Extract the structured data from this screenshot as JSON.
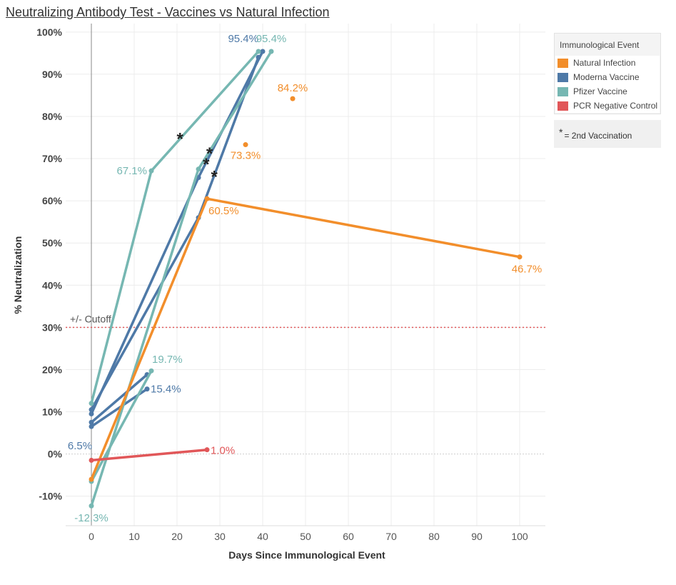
{
  "chart_data": {
    "type": "line",
    "title": "Neutralizing Antibody Test - Vaccines vs Natural Infection",
    "xlabel": "Days Since Immunological Event",
    "ylabel": "% Neutralization",
    "xlim": [
      -6,
      106
    ],
    "ylim": [
      -17,
      102
    ],
    "x_ticks": [
      0,
      10,
      20,
      30,
      40,
      50,
      60,
      70,
      80,
      90,
      100
    ],
    "y_ticks": [
      -10,
      0,
      10,
      20,
      30,
      40,
      50,
      60,
      70,
      80,
      90,
      100
    ],
    "y_tick_labels": [
      "-10%",
      "0%",
      "10%",
      "20%",
      "30%",
      "40%",
      "50%",
      "60%",
      "70%",
      "80%",
      "90%",
      "100%"
    ],
    "cutoff": {
      "value": 30,
      "label": "+/- Cutoff"
    },
    "legend": {
      "title": "Immunological Event",
      "position": "top-right",
      "items": [
        {
          "label": "Natural Infection",
          "color": "#f28e2b"
        },
        {
          "label": "Moderna Vaccine",
          "color": "#4e79a7"
        },
        {
          "label": "Pfizer Vaccine",
          "color": "#76b7b2"
        },
        {
          "label": "PCR Negative Control",
          "color": "#e15759"
        }
      ]
    },
    "note": "= 2nd Vaccination",
    "series": [
      {
        "name": "Moderna Vaccine",
        "color": "#4e79a7",
        "points": [
          [
            0,
            6.5
          ],
          [
            13,
            15.4
          ]
        ]
      },
      {
        "name": "Moderna Vaccine",
        "color": "#4e79a7",
        "points": [
          [
            0,
            7.5
          ],
          [
            13,
            18.8
          ]
        ]
      },
      {
        "name": "Moderna Vaccine",
        "color": "#4e79a7",
        "points": [
          [
            0,
            9.5
          ],
          [
            25,
            65.5
          ],
          [
            40,
            95.4
          ]
        ]
      },
      {
        "name": "Moderna Vaccine",
        "color": "#4e79a7",
        "points": [
          [
            0,
            10.5
          ],
          [
            25,
            56.0
          ],
          [
            39,
            94.0
          ]
        ]
      },
      {
        "name": "Pfizer Vaccine",
        "color": "#76b7b2",
        "points": [
          [
            0,
            12.0
          ],
          [
            14,
            67.1
          ],
          [
            39,
            95.4
          ]
        ]
      },
      {
        "name": "Pfizer Vaccine",
        "color": "#76b7b2",
        "points": [
          [
            0,
            -12.3
          ],
          [
            25,
            67.5
          ],
          [
            42,
            95.4
          ]
        ]
      },
      {
        "name": "Pfizer Vaccine",
        "color": "#76b7b2",
        "points": [
          [
            0,
            -6.5
          ],
          [
            14,
            19.7
          ]
        ]
      },
      {
        "name": "Natural Infection",
        "color": "#f28e2b",
        "points": [
          [
            0,
            -6.0
          ],
          [
            27,
            60.5
          ],
          [
            100,
            46.7
          ]
        ]
      },
      {
        "name": "Natural Infection",
        "color": "#f28e2b",
        "points": [
          [
            36,
            73.3
          ]
        ]
      },
      {
        "name": "Natural Infection",
        "color": "#f28e2b",
        "points": [
          [
            47,
            84.2
          ]
        ]
      },
      {
        "name": "PCR Negative Control",
        "color": "#e15759",
        "points": [
          [
            0,
            -1.5
          ],
          [
            27,
            1.0
          ]
        ]
      }
    ],
    "second_vaccination_markers": [
      [
        20.7,
        75.0
      ],
      [
        27.6,
        71.5
      ],
      [
        26.8,
        69.0
      ],
      [
        28.7,
        66.0
      ]
    ],
    "data_labels": [
      {
        "text": "95.4%",
        "x": 40,
        "y": 95.4,
        "color": "#4e79a7"
      },
      {
        "text": "95.4%",
        "x": 42,
        "y": 95.4,
        "color": "#76b7b2"
      },
      {
        "text": "84.2%",
        "x": 47,
        "y": 84.2,
        "color": "#f28e2b"
      },
      {
        "text": "73.3%",
        "x": 36,
        "y": 73.3,
        "color": "#f28e2b"
      },
      {
        "text": "67.1%",
        "x": 14,
        "y": 67.1,
        "color": "#76b7b2"
      },
      {
        "text": "60.5%",
        "x": 27,
        "y": 60.5,
        "color": "#f28e2b"
      },
      {
        "text": "46.7%",
        "x": 100,
        "y": 46.7,
        "color": "#f28e2b"
      },
      {
        "text": "19.7%",
        "x": 14,
        "y": 19.7,
        "color": "#76b7b2"
      },
      {
        "text": "15.4%",
        "x": 13,
        "y": 15.4,
        "color": "#4e79a7"
      },
      {
        "text": "6.5%",
        "x": 0,
        "y": 6.5,
        "color": "#4e79a7"
      },
      {
        "text": "1.0%",
        "x": 27,
        "y": 1.0,
        "color": "#e15759"
      },
      {
        "text": "-12.3%",
        "x": 0,
        "y": -12.3,
        "color": "#76b7b2"
      }
    ]
  }
}
